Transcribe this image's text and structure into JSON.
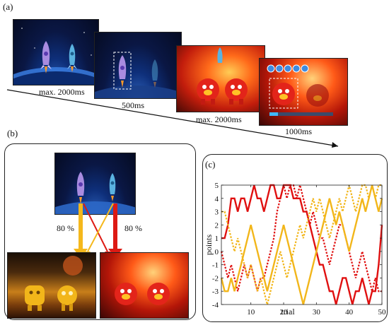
{
  "panels": {
    "a": "(a)",
    "b": "(b)",
    "c": "(c)"
  },
  "timeline": {
    "labels": [
      "max. 2000ms",
      "500ms",
      "max. 2000ms",
      "1000ms"
    ]
  },
  "probabilities": {
    "left": "80 %",
    "right": "80 %"
  },
  "colors": {
    "yellow": "#f2b61a",
    "red": "#e01010",
    "arrow_yellow": "#f5b81c",
    "arrow_red": "#dd1a14"
  },
  "icons": [
    "rocket-purple-icon",
    "rocket-blue-icon",
    "alien-red-icon",
    "alien-yellow-icon",
    "coin-icon"
  ],
  "chart_data": {
    "type": "line",
    "xlabel": "trial",
    "ylabel": "points",
    "xlim": [
      1,
      50
    ],
    "ylim": [
      -4,
      5
    ],
    "xticks": [
      10,
      20,
      30,
      40,
      50
    ],
    "yticks": [
      -4,
      -3,
      -2,
      -1,
      0,
      1,
      2,
      3,
      4,
      5
    ],
    "series": [
      {
        "style": "red-solid",
        "color": "#e01010",
        "dashed": false,
        "values": [
          1,
          1,
          2,
          4,
          4,
          3,
          4,
          4,
          3,
          4,
          5,
          4,
          4,
          3,
          4,
          5,
          5,
          4,
          4,
          5,
          5,
          5,
          4,
          4,
          4,
          3,
          3,
          2,
          1,
          0,
          -1,
          -1,
          -2,
          -3,
          -3,
          -4,
          -3,
          -2,
          -2,
          -3,
          -4,
          -3,
          -3,
          -2,
          -3,
          -4,
          -3,
          -3,
          -1,
          2
        ]
      },
      {
        "style": "red-dotted",
        "color": "#e01010",
        "dashed": true,
        "values": [
          0,
          -1,
          -2,
          -1,
          -2,
          -3,
          -2,
          -1,
          -2,
          -1,
          -2,
          -3,
          -2,
          -2,
          -1,
          0,
          1,
          3,
          4,
          5,
          4,
          5,
          5,
          4,
          5,
          4,
          3,
          2,
          3,
          2,
          1,
          1,
          0,
          -1,
          0,
          1,
          2,
          2,
          1,
          0,
          -1,
          -2,
          -1,
          0,
          -1,
          -2,
          -3,
          -2,
          -3,
          -3
        ]
      },
      {
        "style": "yellow-solid",
        "color": "#f2b61a",
        "dashed": false,
        "values": [
          -2,
          -3,
          -3,
          -2,
          -3,
          -2,
          -1,
          0,
          1,
          2,
          1,
          0,
          -1,
          -2,
          -3,
          -2,
          -1,
          0,
          1,
          2,
          1,
          0,
          -1,
          -2,
          -3,
          -4,
          -3,
          -2,
          -1,
          0,
          1,
          2,
          3,
          4,
          3,
          2,
          3,
          2,
          1,
          0,
          1,
          2,
          3,
          4,
          3,
          4,
          5,
          4,
          3,
          4
        ]
      },
      {
        "style": "yellow-dotted",
        "color": "#f2b61a",
        "dashed": true,
        "values": [
          3,
          3,
          2,
          1,
          0,
          1,
          0,
          -1,
          -2,
          -1,
          -2,
          -3,
          -2,
          -3,
          -4,
          -3,
          -2,
          -1,
          0,
          -1,
          -2,
          -1,
          0,
          1,
          2,
          1,
          2,
          3,
          4,
          3,
          4,
          3,
          2,
          1,
          2,
          3,
          4,
          3,
          4,
          5,
          4,
          3,
          4,
          5,
          5,
          4,
          5,
          4,
          5,
          5
        ]
      }
    ]
  }
}
